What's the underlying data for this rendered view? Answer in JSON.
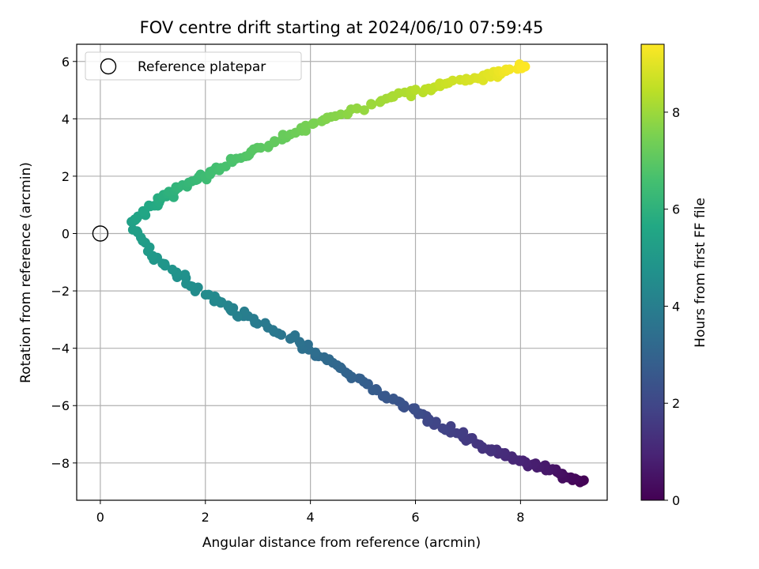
{
  "chart_data": {
    "type": "scatter",
    "title": "FOV centre drift starting at 2024/06/10 07:59:45",
    "xlabel": "Angular distance from reference (arcmin)",
    "ylabel": "Rotation from reference (arcmin)",
    "colorbar_label": "Hours from first FF file",
    "colormap": "viridis",
    "xlim": [
      -0.45,
      9.65
    ],
    "ylim": [
      -9.3,
      6.6
    ],
    "color_range": [
      0,
      9.4
    ],
    "xticks": [
      0,
      2,
      4,
      6,
      8
    ],
    "yticks": [
      -8,
      -6,
      -4,
      -2,
      0,
      2,
      4,
      6
    ],
    "colorbar_ticks": [
      0,
      2,
      4,
      6,
      8
    ],
    "grid": true,
    "legend": {
      "placement": "top-left",
      "entries": [
        "Reference platepar"
      ]
    },
    "reference_point": {
      "x": 0,
      "y": 0
    },
    "path": {
      "t": [
        0,
        0.6,
        1.2,
        1.8,
        2.4,
        3.0,
        3.6,
        4.0,
        4.4,
        4.7,
        5.0,
        5.3,
        5.6,
        6.1,
        6.6,
        7.1,
        7.6,
        8.1,
        8.6,
        9.0,
        9.4
      ],
      "x": [
        9.2,
        8.5,
        7.6,
        6.6,
        5.7,
        4.7,
        3.6,
        2.7,
        2.1,
        1.5,
        1.0,
        0.6,
        0.9,
        1.5,
        2.3,
        3.3,
        4.3,
        5.5,
        6.5,
        7.4,
        8.05
      ],
      "y": [
        -8.7,
        -8.2,
        -7.7,
        -6.8,
        -5.9,
        -4.9,
        -3.6,
        -2.8,
        -2.2,
        -1.5,
        -0.8,
        0.3,
        0.9,
        1.6,
        2.3,
        3.2,
        4.0,
        4.7,
        5.2,
        5.5,
        5.85
      ]
    },
    "samples_per_hour": 32,
    "jitter_x": 0.12,
    "jitter_y": 0.17
  }
}
